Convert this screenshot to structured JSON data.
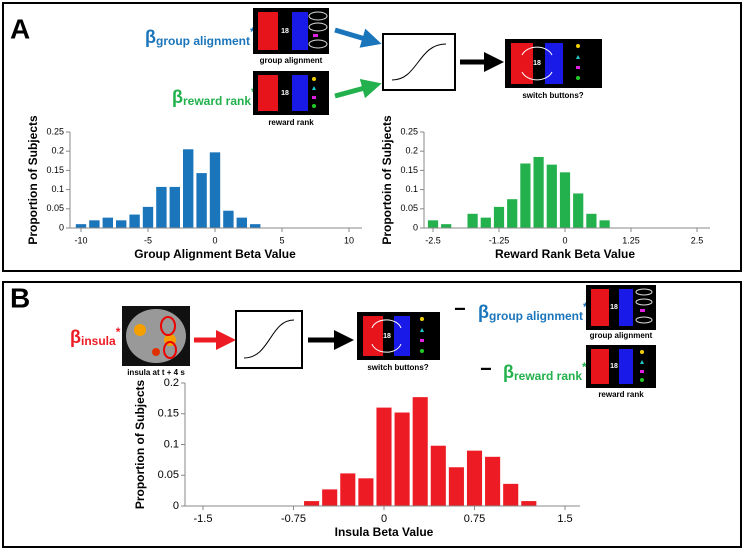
{
  "panel_a": {
    "label": "A",
    "terms": [
      {
        "symbol": "β",
        "subscript": "group alignment",
        "mark": "*",
        "screen_number": "18",
        "screen_caption": "group alignment"
      },
      {
        "symbol": "β",
        "subscript": "reward rank",
        "mark": "*",
        "screen_number": "18",
        "screen_caption": "reward rank"
      }
    ],
    "output_screen_number": "18",
    "output_caption": "switch buttons?"
  },
  "panel_b": {
    "label": "B",
    "input": {
      "symbol": "β",
      "subscript": "insula",
      "mark": "*",
      "caption": "insula at t + 4 s"
    },
    "output_screen_number": "18",
    "output_caption": "switch buttons?",
    "minus": "−",
    "terms": [
      {
        "symbol": "β",
        "subscript": "group alignment",
        "mark": "*",
        "screen_number": "18",
        "screen_caption": "group alignment"
      },
      {
        "symbol": "β",
        "subscript": "reward rank",
        "mark": "*",
        "screen_number": "18",
        "screen_caption": "reward rank"
      }
    ]
  },
  "chart_data": [
    {
      "type": "histogram",
      "xlabel": "Group Alignment  Beta Value",
      "ylabel": "Proportion of Subjects",
      "color": "#1b75bb",
      "bins": [
        -10.5,
        -9.5,
        -8.5,
        -7.5,
        -6.5,
        -5.5,
        -4.5,
        -3.5,
        -2.5,
        -1.5,
        -0.5,
        0.5,
        1.5,
        2.5,
        3.5
      ],
      "values": [
        0.01,
        0.02,
        0.027,
        0.02,
        0.035,
        0.055,
        0.107,
        0.107,
        0.205,
        0.143,
        0.197,
        0.045,
        0.027,
        0.01
      ],
      "xlim": [
        -10,
        10
      ],
      "xticks": [
        -10,
        -5,
        0,
        5,
        10
      ],
      "ylim": [
        0,
        0.25
      ],
      "yticks": [
        0,
        0.05,
        0.1,
        0.15,
        0.2,
        0.25
      ]
    },
    {
      "type": "histogram",
      "xlabel": "Reward Rank Beta Value",
      "ylabel": "Proportoin of Subjects",
      "color": "#22b14c",
      "bins": [
        -2.625,
        -2.375,
        -2.125,
        -1.875,
        -1.625,
        -1.375,
        -1.125,
        -0.875,
        -0.625,
        -0.375,
        -0.125,
        0.125,
        0.375,
        0.625,
        0.875
      ],
      "values": [
        0.02,
        0.01,
        0,
        0.037,
        0.027,
        0.055,
        0.075,
        0.168,
        0.185,
        0.165,
        0.145,
        0.09,
        0.037,
        0.02
      ],
      "xlim": [
        -2.5,
        2.5
      ],
      "xticks": [
        -2.5,
        -1.25,
        0,
        1.25,
        2.5
      ],
      "ylim": [
        0,
        0.25
      ],
      "yticks": [
        0,
        0.05,
        0.1,
        0.15,
        0.2,
        0.25
      ]
    },
    {
      "type": "histogram",
      "xlabel": "Insula Beta Value",
      "ylabel": "Proportion of Subjects",
      "color": "#ed1c24",
      "bins": [
        -0.675,
        -0.525,
        -0.375,
        -0.225,
        -0.075,
        0.075,
        0.225,
        0.375,
        0.525,
        0.675,
        0.825,
        0.975,
        1.125,
        1.275
      ],
      "values": [
        0.008,
        0.027,
        0.053,
        0.045,
        0.16,
        0.152,
        0.177,
        0.098,
        0.063,
        0.09,
        0.08,
        0.036,
        0.008
      ],
      "xlim": [
        -1.5,
        1.5
      ],
      "xticks": [
        -1.5,
        -0.75,
        0,
        0.75,
        1.5
      ],
      "ylim": [
        0,
        0.2
      ],
      "yticks": [
        0,
        0.05,
        0.1,
        0.15,
        0.2
      ]
    }
  ]
}
